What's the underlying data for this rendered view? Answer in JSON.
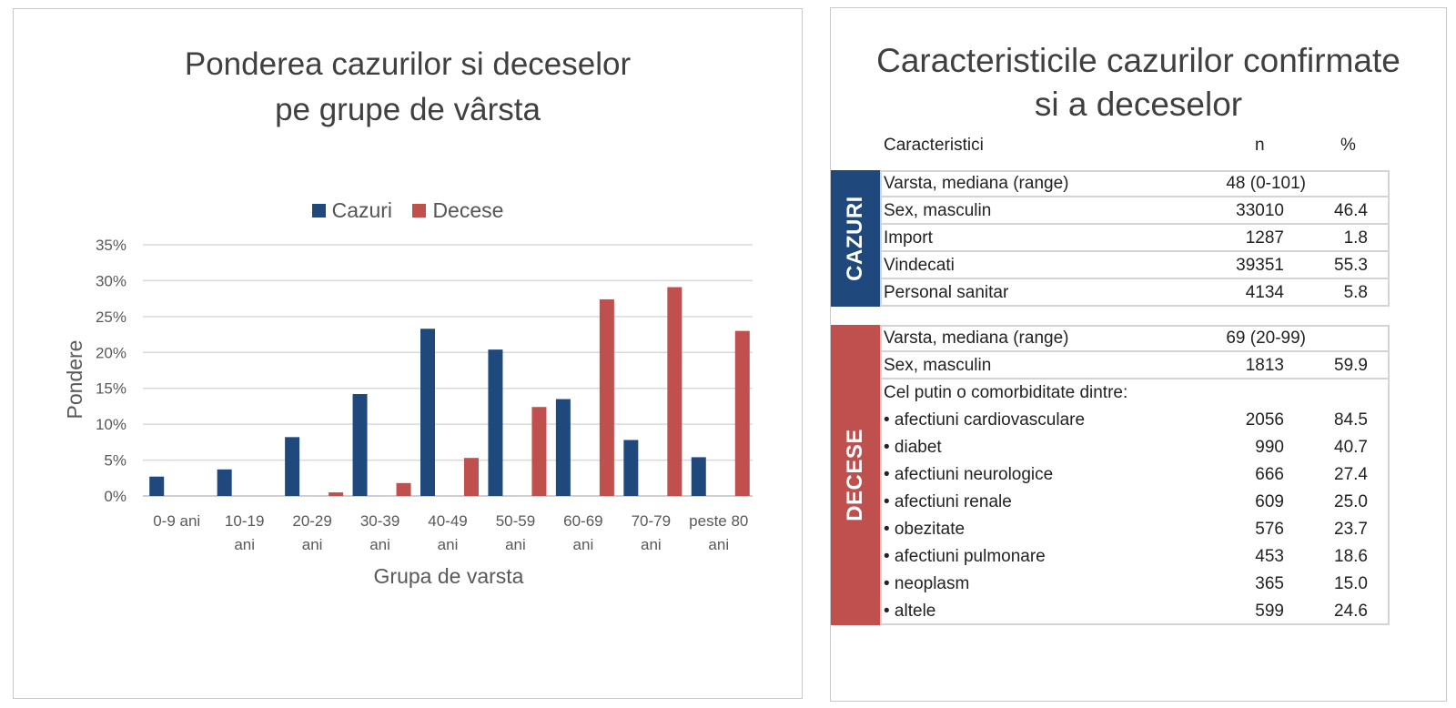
{
  "chart_data": {
    "type": "bar",
    "title_lines": [
      "Ponderea cazurilor si deceselor",
      "pe grupe de vârsta"
    ],
    "xlabel": "Grupa de varsta",
    "ylabel": "Pondere",
    "categories": [
      [
        "0-9 ani"
      ],
      [
        "10-19",
        "ani"
      ],
      [
        "20-29",
        "ani"
      ],
      [
        "30-39",
        "ani"
      ],
      [
        "40-49",
        "ani"
      ],
      [
        "50-59",
        "ani"
      ],
      [
        "60-69",
        "ani"
      ],
      [
        "70-79",
        "ani"
      ],
      [
        "peste 80",
        "ani"
      ]
    ],
    "series": [
      {
        "name": "Cazuri",
        "color": "#1f497d",
        "values": [
          2.7,
          3.7,
          8.2,
          14.2,
          23.3,
          20.4,
          13.5,
          7.8,
          5.4
        ]
      },
      {
        "name": "Decese",
        "color": "#c0504d",
        "values": [
          0.0,
          0.0,
          0.5,
          1.8,
          5.3,
          12.4,
          27.4,
          29.1,
          23.0
        ]
      }
    ],
    "ylim": [
      0,
      35
    ],
    "yticks": [
      "0%",
      "5%",
      "10%",
      "15%",
      "20%",
      "25%",
      "30%",
      "35%"
    ],
    "grid": true,
    "legend": "top-center"
  },
  "table": {
    "title_lines": [
      "Caracteristicile cazurilor confirmate",
      "si a deceselor"
    ],
    "headers": {
      "label": "Caracteristici",
      "n": "n",
      "pct": "%"
    },
    "sections": [
      {
        "name": "CAZURI",
        "color": "#1f497d",
        "rows": [
          {
            "label": "Varsta, mediana (range)",
            "n": "48 (0-101)",
            "pct": "",
            "median": true,
            "sep": true
          },
          {
            "label": "Sex, masculin",
            "n": "33010",
            "pct": "46.4",
            "sep": true
          },
          {
            "label": "Import",
            "n": "1287",
            "pct": "1.8",
            "sep": true
          },
          {
            "label": "Vindecati",
            "n": "39351",
            "pct": "55.3",
            "sep": true
          },
          {
            "label": "Personal sanitar",
            "n": "4134",
            "pct": "5.8",
            "sep": false
          }
        ]
      },
      {
        "name": "DECESE",
        "color": "#c0504d",
        "rows": [
          {
            "label": "Varsta, mediana (range)",
            "n": "69 (20-99)",
            "pct": "",
            "median": true,
            "sep": true
          },
          {
            "label": "Sex, masculin",
            "n": "1813",
            "pct": "59.9",
            "sep": true
          },
          {
            "label": "Cel putin o comorbiditate dintre:",
            "n": "",
            "pct": "",
            "sep": false
          },
          {
            "label": "• afectiuni cardiovasculare",
            "n": "2056",
            "pct": "84.5",
            "sep": false
          },
          {
            "label": "• diabet",
            "n": "990",
            "pct": "40.7",
            "sep": false
          },
          {
            "label": "• afectiuni neurologice",
            "n": "666",
            "pct": "27.4",
            "sep": false
          },
          {
            "label": "• afectiuni renale",
            "n": "609",
            "pct": "25.0",
            "sep": false
          },
          {
            "label": "• obezitate",
            "n": "576",
            "pct": "23.7",
            "sep": false
          },
          {
            "label": "• afectiuni pulmonare",
            "n": "453",
            "pct": "18.6",
            "sep": false
          },
          {
            "label": "• neoplasm",
            "n": "365",
            "pct": "15.0",
            "sep": false
          },
          {
            "label": "• altele",
            "n": "599",
            "pct": "24.6",
            "sep": false
          }
        ]
      }
    ]
  }
}
